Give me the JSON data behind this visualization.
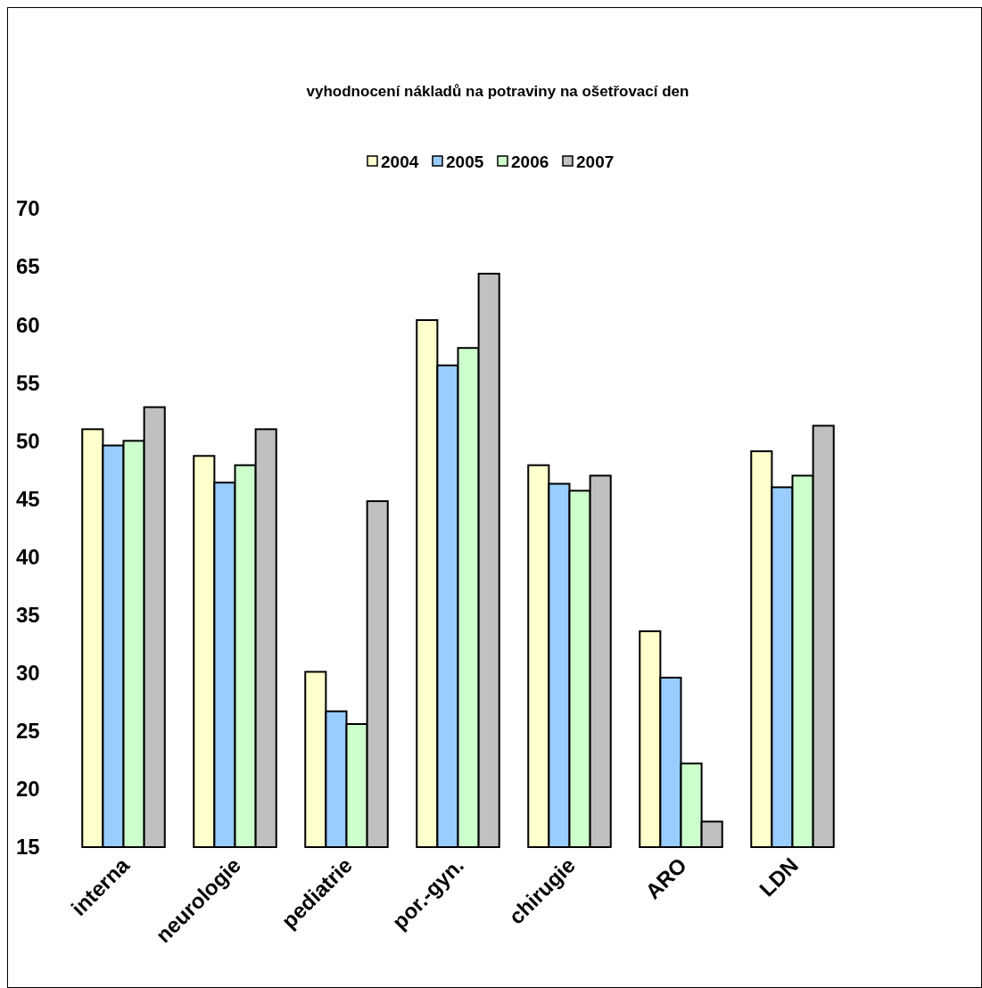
{
  "chart_data": {
    "type": "bar",
    "title": "vyhodnocení nákladů na potraviny na ošetřovací den",
    "categories": [
      "interna",
      "neurologie",
      "pediatrie",
      "por.-gyn.",
      "chirugie",
      "ARO",
      "LDN"
    ],
    "series": [
      {
        "name": "2004",
        "color": "#ffffcc",
        "values": [
          51.0,
          48.7,
          30.1,
          60.4,
          47.9,
          33.6,
          49.1
        ]
      },
      {
        "name": "2005",
        "color": "#99ccff",
        "values": [
          49.6,
          46.4,
          26.7,
          56.5,
          46.3,
          29.6,
          46.0
        ]
      },
      {
        "name": "2006",
        "color": "#ccffcc",
        "values": [
          50.0,
          47.9,
          25.6,
          58.0,
          45.7,
          22.2,
          47.0
        ]
      },
      {
        "name": "2007",
        "color": "#c0c0c0",
        "values": [
          52.9,
          51.0,
          44.8,
          64.4,
          47.0,
          17.2,
          51.3
        ]
      }
    ],
    "ylim": [
      15,
      70
    ],
    "yticks": [
      15,
      20,
      25,
      30,
      35,
      40,
      45,
      50,
      55,
      60,
      65,
      70
    ],
    "grid": false,
    "legend": "top"
  }
}
